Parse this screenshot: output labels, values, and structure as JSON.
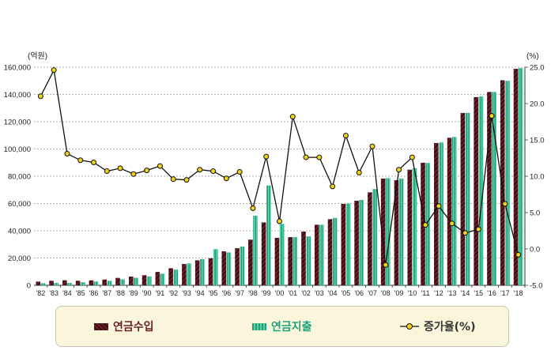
{
  "chart_data": {
    "type": "bar",
    "categories": [
      "'82",
      "'83",
      "'84",
      "'85",
      "'86",
      "'87",
      "'88",
      "'89",
      "'90",
      "'91",
      "'92",
      "'93",
      "'94",
      "'95",
      "'96",
      "'97",
      "'98",
      "'99",
      "'00",
      "'01",
      "'02",
      "'03",
      "'04",
      "'05",
      "'06",
      "'07",
      "'08",
      "'09",
      "'10",
      "'11",
      "'12",
      "'13",
      "'14",
      "'15",
      "'16",
      "'17",
      "'18"
    ],
    "series": [
      {
        "name": "연금수입",
        "color": "#6b1f2a",
        "values": [
          2700,
          3300,
          3700,
          3300,
          3600,
          4200,
          5400,
          6400,
          7400,
          9800,
          12500,
          15600,
          18300,
          19800,
          24900,
          27200,
          33500,
          46100,
          34800,
          35300,
          39400,
          44400,
          48500,
          59700,
          62000,
          68200,
          78300,
          77100,
          84800,
          89900,
          104400,
          108200,
          126400,
          138000,
          141800,
          150400,
          158800
        ]
      },
      {
        "name": "연금지출",
        "color": "#1fa27a",
        "values": [
          1500,
          1800,
          1700,
          2200,
          2800,
          3300,
          4400,
          5500,
          6500,
          8500,
          11500,
          16000,
          19200,
          26500,
          24100,
          28400,
          51100,
          73200,
          45100,
          35300,
          35900,
          44400,
          49400,
          59900,
          62600,
          70600,
          78600,
          78300,
          85800,
          89700,
          104700,
          108800,
          126500,
          138500,
          141800,
          150000,
          159300
        ]
      },
      {
        "name": "증가율(%)",
        "axis": "right",
        "values": [
          21.0,
          24.6,
          13.1,
          12.2,
          11.9,
          10.7,
          11.1,
          10.3,
          10.8,
          11.4,
          9.6,
          9.5,
          10.9,
          10.7,
          9.7,
          10.6,
          5.6,
          12.7,
          3.8,
          18.2,
          12.6,
          12.6,
          8.6,
          15.6,
          10.5,
          14.1,
          -2.2,
          10.9,
          12.6,
          3.3,
          5.9,
          3.5,
          2.2,
          2.7,
          18.3,
          6.2,
          -0.8
        ]
      }
    ],
    "y_left": {
      "unit": "(억원)",
      "range": [
        0,
        160000
      ],
      "ticks": [
        "0",
        "20,000",
        "40,000",
        "60,000",
        "80,000",
        "100,000",
        "120,000",
        "140,000",
        "160,000"
      ]
    },
    "y_right": {
      "unit": "(%)",
      "range": [
        -5,
        25
      ],
      "ticks": [
        {
          "v": -5,
          "t": "-5.0"
        },
        {
          "v": 0,
          "t": "0.0"
        },
        {
          "v": 5,
          "t": "5.0"
        },
        {
          "v": 10,
          "t": "10.0"
        },
        {
          "v": 15,
          "t": "15.0"
        },
        {
          "v": 20,
          "t": "20.0"
        },
        {
          "v": 25,
          "t": "25.0"
        }
      ]
    },
    "grid": true,
    "legend": "bottom"
  },
  "legend": {
    "income": "연금수입",
    "expense": "연금지출",
    "rate": "증가율(%)"
  }
}
